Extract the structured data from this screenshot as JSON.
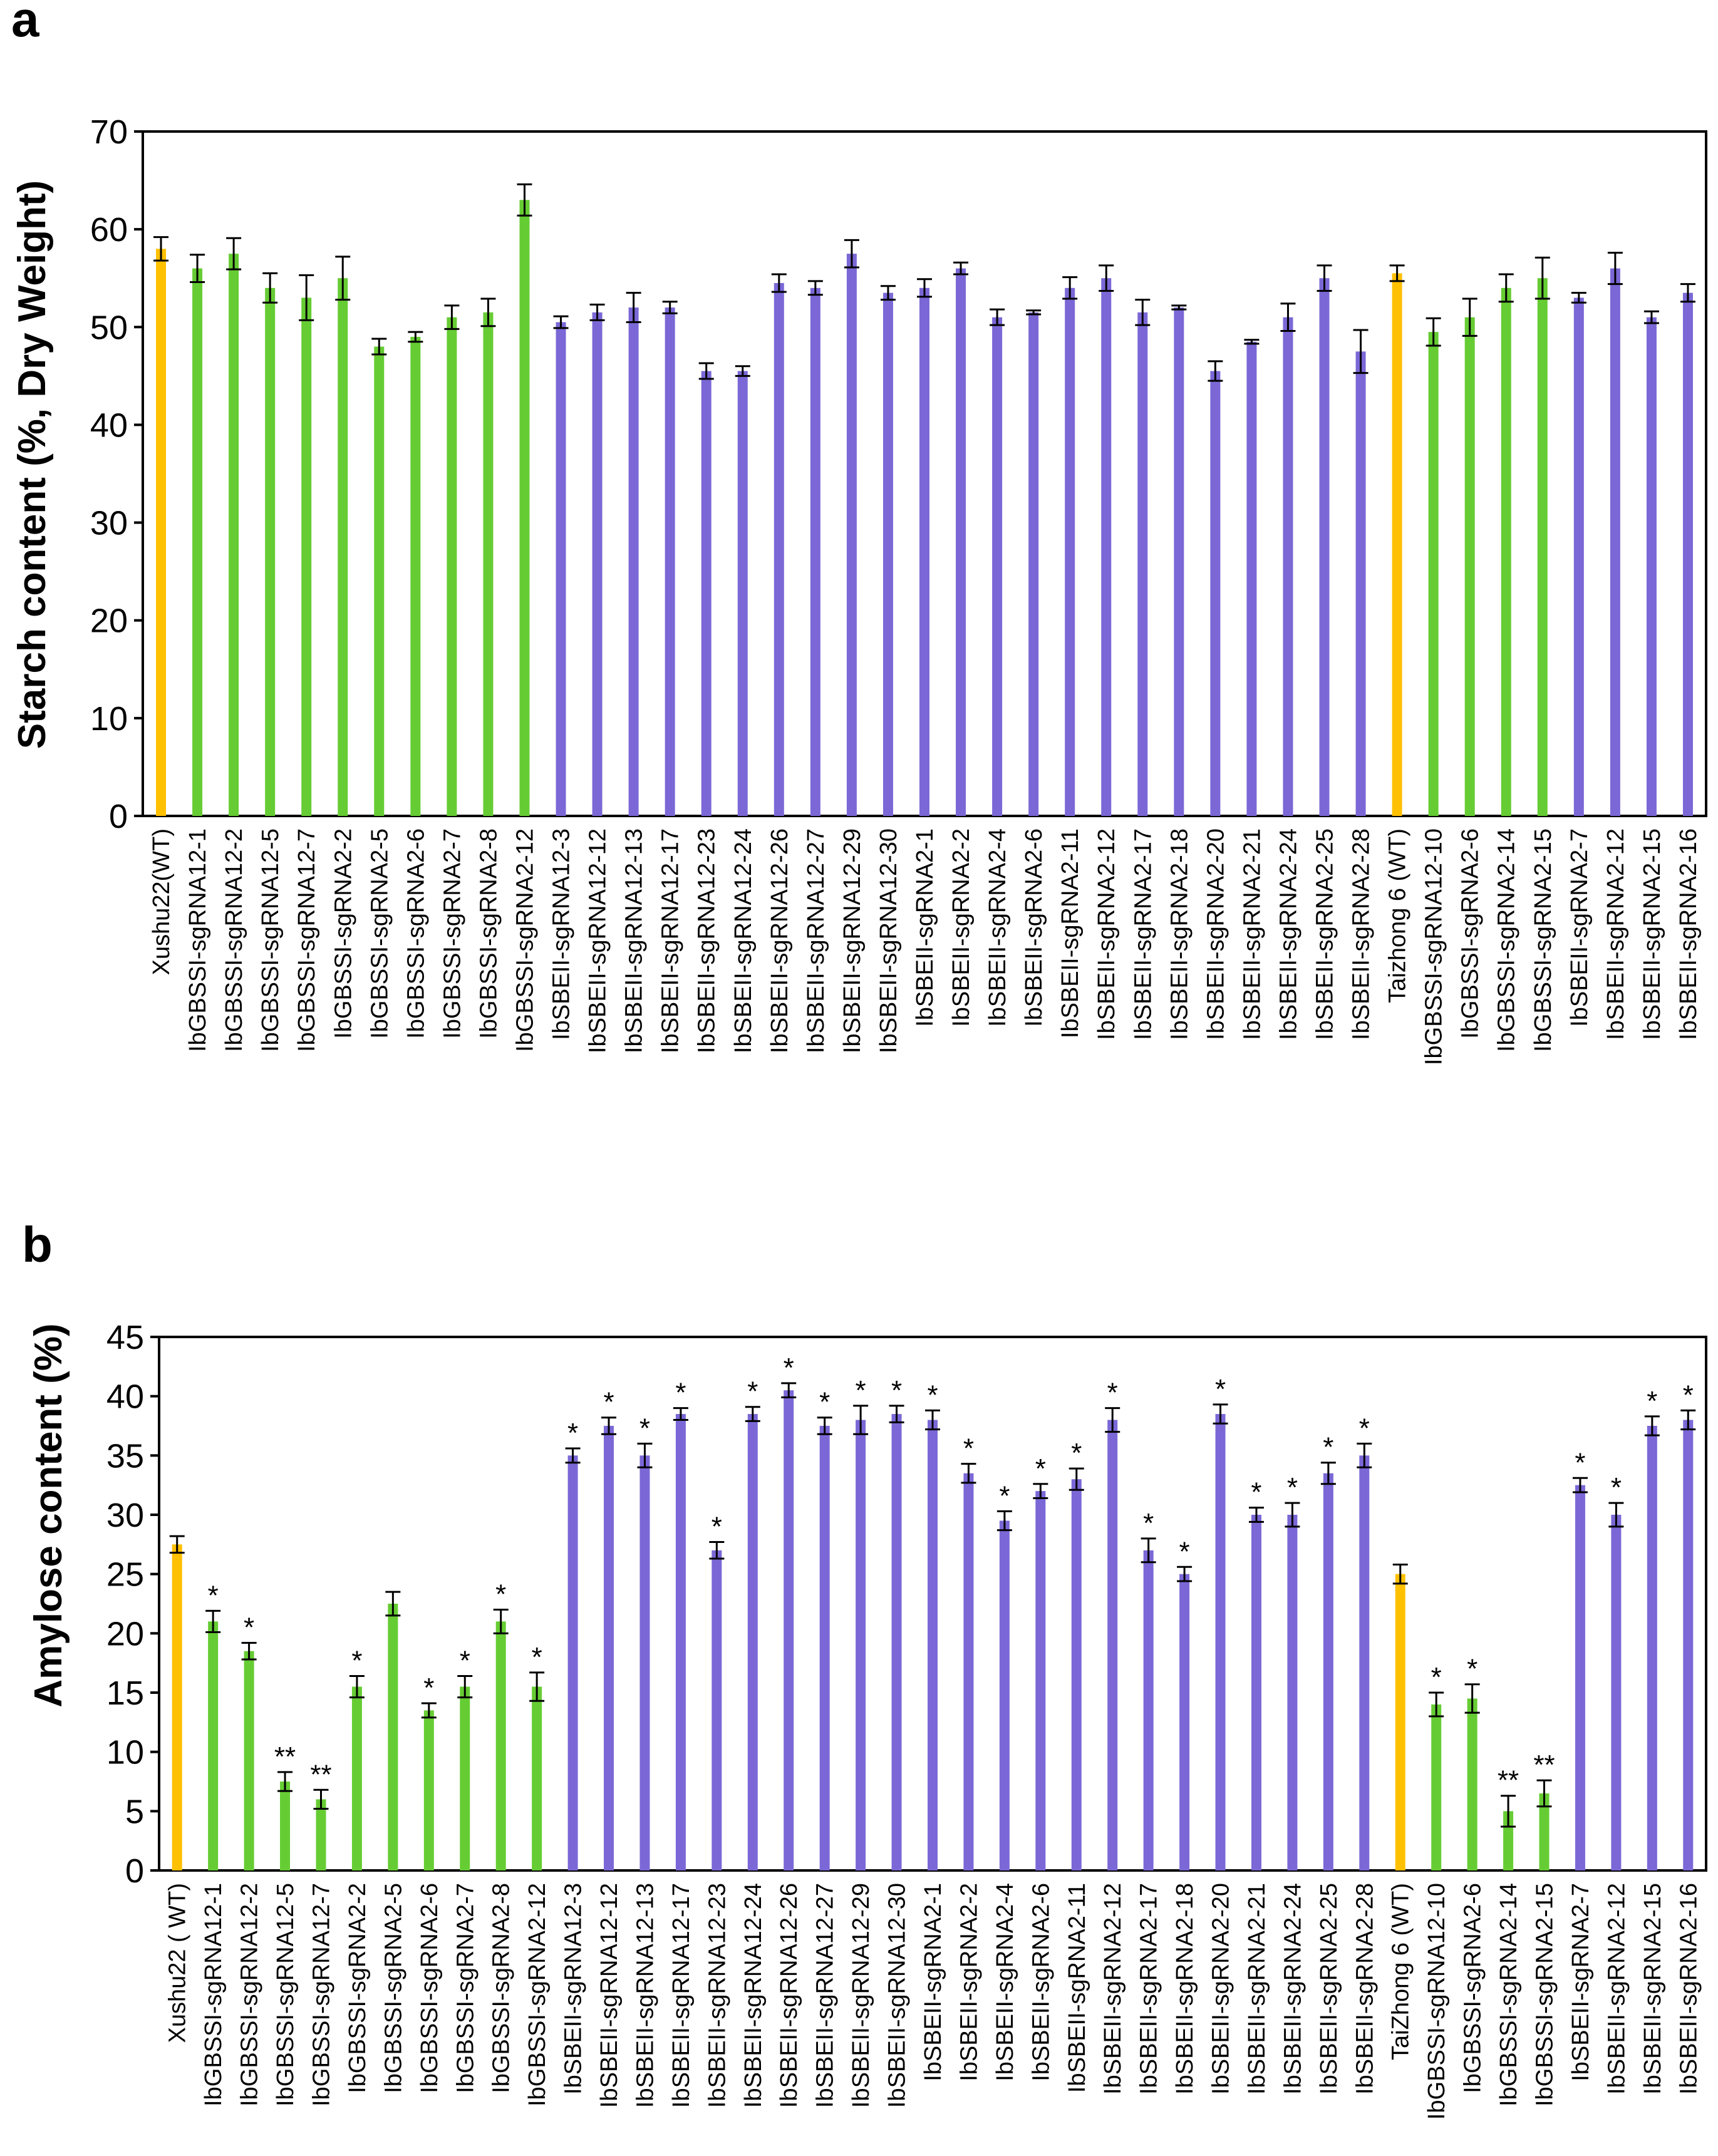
{
  "colors": {
    "wt": "#FFC000",
    "gbssi": "#66CC33",
    "sbeii": "#7B68D6",
    "axis": "#000000"
  },
  "chart_data": [
    {
      "panel": "a",
      "type": "bar",
      "title": "",
      "xlabel": "",
      "ylabel": "Starch content (%, Dry Weight)",
      "ylim": [
        0,
        70
      ],
      "yticks": [
        0,
        10,
        20,
        30,
        40,
        50,
        60,
        70
      ],
      "categories": [
        "Xushu22(WT)",
        "IbGBSSI-sgRNA12-1",
        "IbGBSSI-sgRNA12-2",
        "IbGBSSI-sgRNA12-5",
        "IbGBSSI-sgRNA12-7",
        "IbGBSSI-sgRNA2-2",
        "IbGBSSI-sgRNA2-5",
        "IbGBSSI-sgRNA2-6",
        "IbGBSSI-sgRNA2-7",
        "IbGBSSI-sgRNA2-8",
        "IbGBSSI-sgRNA2-12",
        "IbSBEII-sgRNA12-3",
        "IbSBEII-sgRNA12-12",
        "IbSBEII-sgRNA12-13",
        "IbSBEII-sgRNA12-17",
        "IbSBEII-sgRNA12-23",
        "IbSBEII-sgRNA12-24",
        "IbSBEII-sgRNA12-26",
        "IbSBEII-sgRNA12-27",
        "IbSBEII-sgRNA12-29",
        "IbSBEII-sgRNA12-30",
        "IbSBEII-sgRNA2-1",
        "IbSBEII-sgRNA2-2",
        "IbSBEII-sgRNA2-4",
        "IbSBEII-sgRNA2-6",
        "IbSBEII-sgRNA2-11",
        "IbSBEII-sgRNA2-12",
        "IbSBEII-sgRNA2-17",
        "IbSBEII-sgRNA2-18",
        "IbSBEII-sgRNA2-20",
        "IbSBEII-sgRNA2-21",
        "IbSBEII-sgRNA2-24",
        "IbSBEII-sgRNA2-25",
        "IbSBEII-sgRNA2-28",
        "Taizhong 6 (WT)",
        "IbGBSSI-sgRNA12-10",
        "IbGBSSI-sgRNA2-6",
        "IbGBSSI-sgRNA2-14",
        "IbGBSSI-sgRNA2-15",
        "IbSBEII-sgRNA2-7",
        "IbSBEII-sgRNA2-12",
        "IbSBEII-sgRNA2-15",
        "IbSBEII-sgRNA2-16"
      ],
      "groups": [
        "wt",
        "gbssi",
        "gbssi",
        "gbssi",
        "gbssi",
        "gbssi",
        "gbssi",
        "gbssi",
        "gbssi",
        "gbssi",
        "gbssi",
        "sbeii",
        "sbeii",
        "sbeii",
        "sbeii",
        "sbeii",
        "sbeii",
        "sbeii",
        "sbeii",
        "sbeii",
        "sbeii",
        "sbeii",
        "sbeii",
        "sbeii",
        "sbeii",
        "sbeii",
        "sbeii",
        "sbeii",
        "sbeii",
        "sbeii",
        "sbeii",
        "sbeii",
        "sbeii",
        "sbeii",
        "wt",
        "gbssi",
        "gbssi",
        "gbssi",
        "gbssi",
        "sbeii",
        "sbeii",
        "sbeii",
        "sbeii"
      ],
      "values": [
        58.0,
        56.0,
        57.5,
        54.0,
        53.0,
        55.0,
        48.0,
        49.0,
        51.0,
        51.5,
        63.0,
        50.5,
        51.5,
        52.0,
        52.0,
        45.5,
        45.5,
        54.5,
        54.0,
        57.5,
        53.5,
        54.0,
        56.0,
        51.0,
        51.5,
        54.0,
        55.0,
        51.5,
        52.0,
        45.5,
        48.5,
        51.0,
        55.0,
        47.5,
        55.5,
        49.5,
        51.0,
        54.0,
        55.0,
        53.0,
        56.0,
        51.0,
        53.5
      ],
      "errors": [
        1.2,
        1.4,
        1.6,
        1.5,
        2.3,
        2.2,
        0.8,
        0.5,
        1.2,
        1.4,
        1.6,
        0.6,
        0.8,
        1.5,
        0.6,
        0.8,
        0.5,
        0.9,
        0.7,
        1.4,
        0.7,
        0.9,
        0.6,
        0.8,
        0.2,
        1.1,
        1.3,
        1.3,
        0.2,
        1.0,
        0.2,
        1.4,
        1.3,
        2.2,
        0.8,
        1.4,
        1.9,
        1.4,
        2.1,
        0.5,
        1.6,
        0.6,
        0.9
      ],
      "annotations": []
    },
    {
      "panel": "b",
      "type": "bar",
      "title": "",
      "xlabel": "",
      "ylabel": "Amylose content (%)",
      "ylim": [
        0,
        45
      ],
      "yticks": [
        0,
        5,
        10,
        15,
        20,
        25,
        30,
        35,
        40,
        45
      ],
      "categories": [
        "Xushu22 ( WT)",
        "IbGBSSI-sgRNA12-1",
        "IbGBSSI-sgRNA12-2",
        "IbGBSSI-sgRNA12-5",
        "IbGBSSI-sgRNA12-7",
        "IbGBSSI-sgRNA2-2",
        "IbGBSSI-sgRNA2-5",
        "IbGBSSI-sgRNA2-6",
        "IbGBSSI-sgRNA2-7",
        "IbGBSSI-sgRNA2-8",
        "IbGBSSI-sgRNA2-12",
        "IbSBEII-sgRNA12-3",
        "IbSBEII-sgRNA12-12",
        "IbSBEII-sgRNA12-13",
        "IbSBEII-sgRNA12-17",
        "IbSBEII-sgRNA12-23",
        "IbSBEII-sgRNA12-24",
        "IbSBEII-sgRNA12-26",
        "IbSBEII-sgRNA12-27",
        "IbSBEII-sgRNA12-29",
        "IbSBEII-sgRNA12-30",
        "IbSBEII-sgRNA2-1",
        "IbSBEII-sgRNA2-2",
        "IbSBEII-sgRNA2-4",
        "IbSBEII-sgRNA2-6",
        "IbSBEII-sgRNA2-11",
        "IbSBEII-sgRNA2-12",
        "IbSBEII-sgRNA2-17",
        "IbSBEII-sgRNA2-18",
        "IbSBEII-sgRNA2-20",
        "IbSBEII-sgRNA2-21",
        "IbSBEII-sgRNA2-24",
        "IbSBEII-sgRNA2-25",
        "IbSBEII-sgRNA2-28",
        "TaiZhong 6 (WT)",
        "IbGBSSI-sgRNA12-10",
        "IbGBSSI-sgRNA2-6",
        "IbGBSSI-sgRNA2-14",
        "IbGBSSI-sgRNA2-15",
        "IbSBEII-sgRNA2-7",
        "IbSBEII-sgRNA2-12",
        "IbSBEII-sgRNA2-15",
        "IbSBEII-sgRNA2-16"
      ],
      "groups": [
        "wt",
        "gbssi",
        "gbssi",
        "gbssi",
        "gbssi",
        "gbssi",
        "gbssi",
        "gbssi",
        "gbssi",
        "gbssi",
        "gbssi",
        "sbeii",
        "sbeii",
        "sbeii",
        "sbeii",
        "sbeii",
        "sbeii",
        "sbeii",
        "sbeii",
        "sbeii",
        "sbeii",
        "sbeii",
        "sbeii",
        "sbeii",
        "sbeii",
        "sbeii",
        "sbeii",
        "sbeii",
        "sbeii",
        "sbeii",
        "sbeii",
        "sbeii",
        "sbeii",
        "sbeii",
        "wt",
        "gbssi",
        "gbssi",
        "gbssi",
        "gbssi",
        "sbeii",
        "sbeii",
        "sbeii",
        "sbeii"
      ],
      "values": [
        27.5,
        21.0,
        18.5,
        7.5,
        6.0,
        15.5,
        22.5,
        13.5,
        15.5,
        21.0,
        15.5,
        35.0,
        37.5,
        35.0,
        38.5,
        27.0,
        38.5,
        40.5,
        37.5,
        38.0,
        38.5,
        38.0,
        33.5,
        29.5,
        32.0,
        33.0,
        38.0,
        27.0,
        25.0,
        38.5,
        30.0,
        30.0,
        33.5,
        35.0,
        25.0,
        14.0,
        14.5,
        5.0,
        6.5,
        32.5,
        30.0,
        37.5,
        38.0
      ],
      "errors": [
        0.7,
        0.9,
        0.7,
        0.8,
        0.8,
        0.9,
        1.0,
        0.6,
        0.9,
        1.0,
        1.2,
        0.6,
        0.7,
        1.0,
        0.5,
        0.7,
        0.6,
        0.6,
        0.7,
        1.2,
        0.7,
        0.8,
        0.8,
        0.8,
        0.6,
        0.9,
        1.0,
        1.0,
        0.6,
        0.8,
        0.6,
        1.0,
        0.9,
        1.0,
        0.8,
        1.0,
        1.2,
        1.3,
        1.1,
        0.6,
        1.0,
        0.8,
        0.8
      ],
      "annotations": [
        "",
        "*",
        "*",
        "**",
        "**",
        "*",
        "",
        "*",
        "*",
        "*",
        "*",
        "*",
        "*",
        "*",
        "*",
        "*",
        "*",
        "*",
        "*",
        "*",
        "*",
        "*",
        "*",
        "*",
        "*",
        "*",
        "*",
        "*",
        "*",
        "*",
        "*",
        "*",
        "*",
        "*",
        "",
        "*",
        "*",
        "**",
        "**",
        "*",
        "*",
        "*",
        "*"
      ]
    }
  ]
}
